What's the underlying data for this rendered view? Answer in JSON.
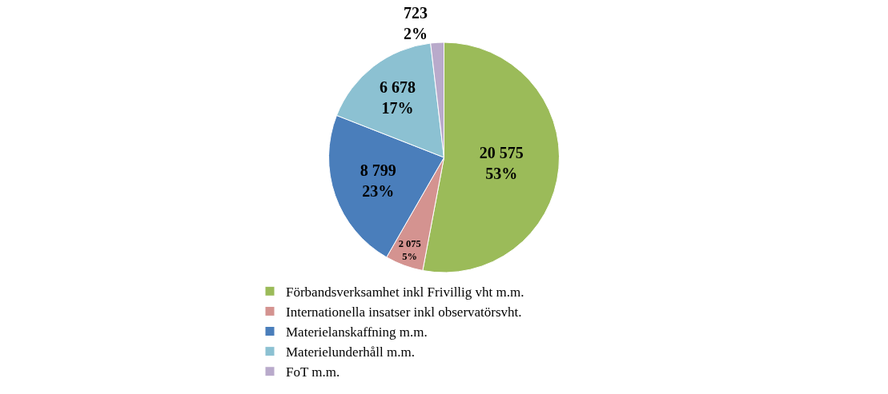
{
  "chart_data": {
    "type": "pie",
    "categories": [
      "Förbandsverksamhet inkl Frivillig vht m.m.",
      "Internationella insatser inkl observatörsvht.",
      "Materielanskaffning m.m.",
      "Materielunderhåll m.m.",
      "FoT m.m."
    ],
    "values": [
      20575,
      2075,
      8799,
      6678,
      723
    ],
    "colors": [
      "#9bbb59",
      "#d49390",
      "#4a7ebb",
      "#8cc1d2",
      "#b9aacb"
    ],
    "value_labels": [
      "20 575\n53%",
      "2 075\n5%",
      "8 799\n23%",
      "6 678\n17%",
      "723\n2%"
    ],
    "legend": "bottom"
  }
}
